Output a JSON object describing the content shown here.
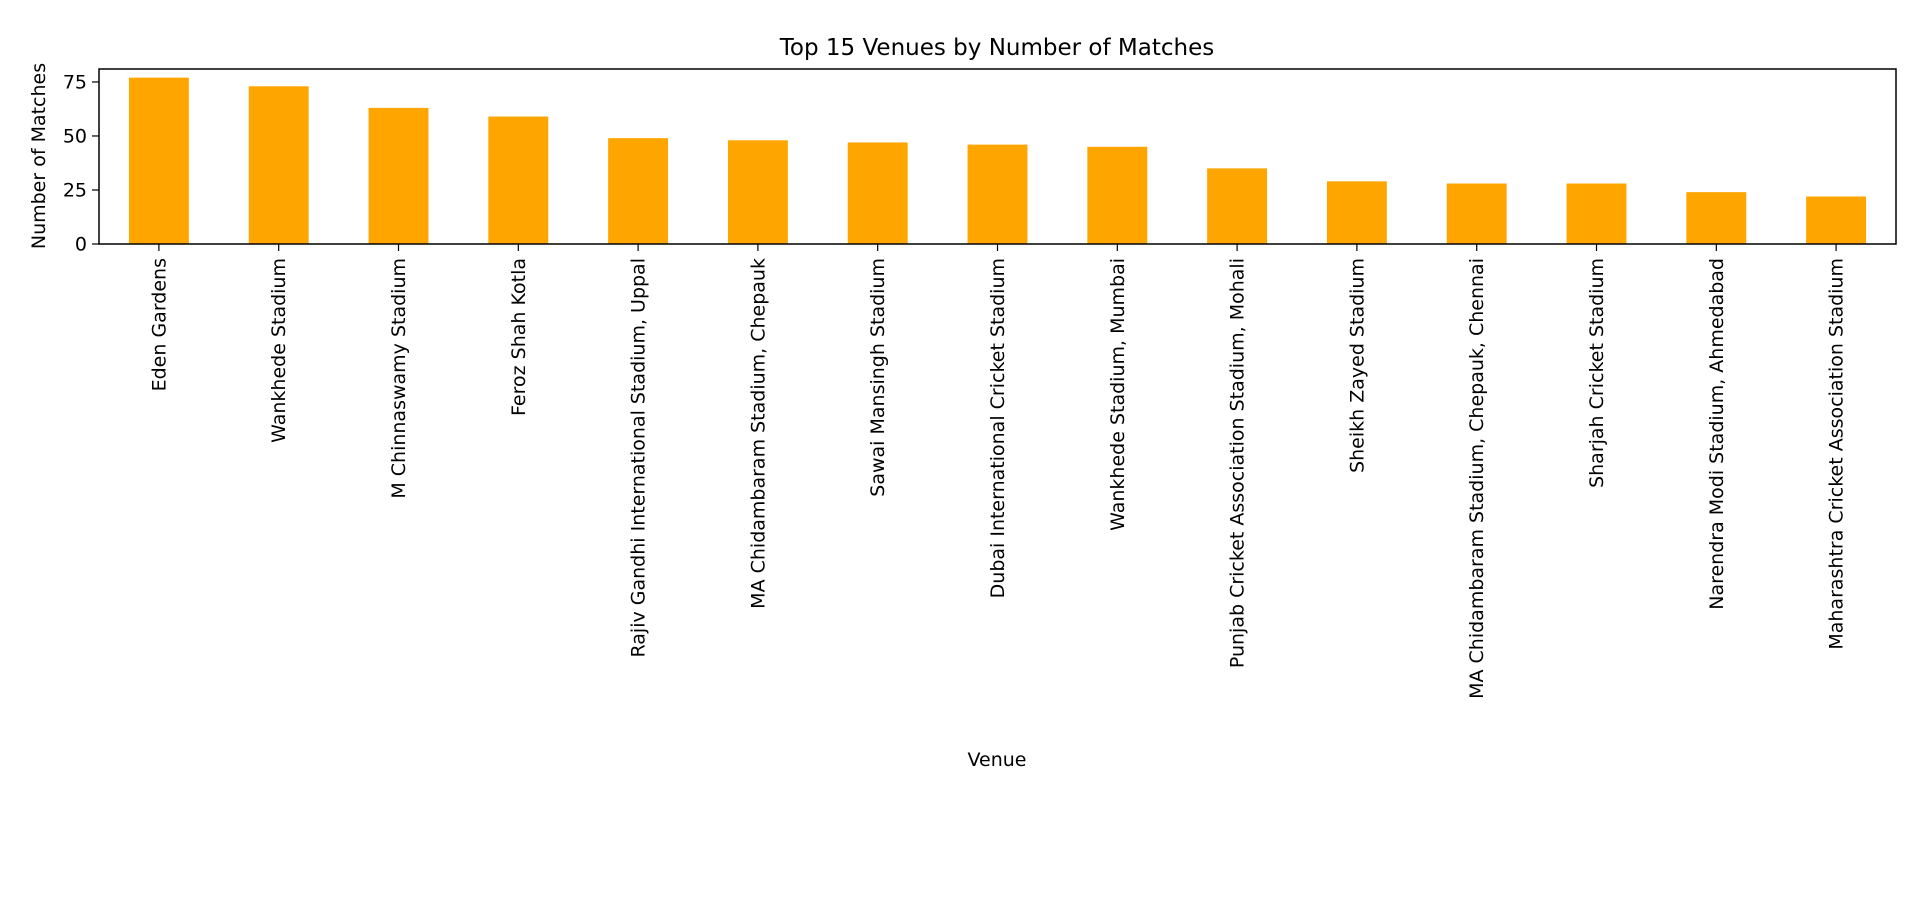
{
  "chart_data": {
    "type": "bar",
    "title": "Top 15 Venues by Number of Matches",
    "xlabel": "Venue",
    "ylabel": "Number of Matches",
    "categories": [
      "Eden Gardens",
      "Wankhede Stadium",
      "M Chinnaswamy Stadium",
      "Feroz Shah Kotla",
      "Rajiv Gandhi International Stadium, Uppal",
      "MA Chidambaram Stadium, Chepauk",
      "Sawai Mansingh Stadium",
      "Dubai International Cricket Stadium",
      "Wankhede Stadium, Mumbai",
      "Punjab Cricket Association Stadium, Mohali",
      "Sheikh Zayed Stadium",
      "MA Chidambaram Stadium, Chepauk, Chennai",
      "Sharjah Cricket Stadium",
      "Narendra Modi Stadium, Ahmedabad",
      "Maharashtra Cricket Association Stadium"
    ],
    "values": [
      77,
      73,
      63,
      59,
      49,
      48,
      47,
      46,
      45,
      35,
      29,
      28,
      28,
      24,
      22
    ],
    "ylim": [
      0,
      81
    ],
    "yticks": [
      0,
      25,
      50,
      75
    ],
    "bar_color": "#ffa500",
    "grid": false,
    "legend": "none"
  }
}
